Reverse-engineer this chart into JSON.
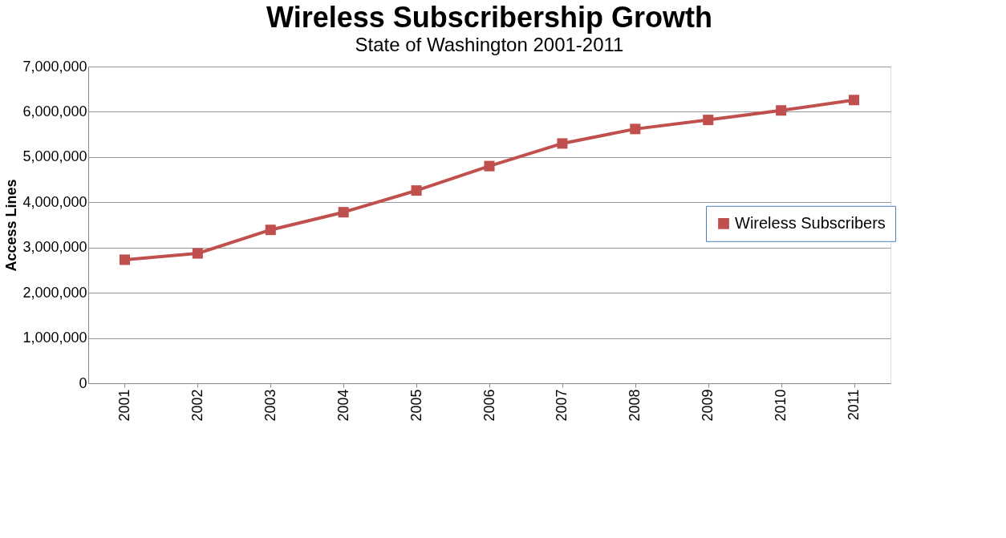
{
  "chart_data": {
    "type": "line",
    "title": "Wireless Subscribership Growth",
    "subtitle": "State of Washington 2001-2011",
    "ylabel": "Access Lines",
    "categories": [
      "2001",
      "2002",
      "2003",
      "2004",
      "2005",
      "2006",
      "2007",
      "2008",
      "2009",
      "2010",
      "2011"
    ],
    "series": [
      {
        "name": "Wireless Subscribers",
        "color": "#c0504d",
        "values": [
          2730000,
          2870000,
          3390000,
          3780000,
          4260000,
          4800000,
          5300000,
          5620000,
          5820000,
          6030000,
          6260000
        ]
      }
    ],
    "ylim": [
      0,
      7000000
    ],
    "yticks": [
      0,
      {
        "value": 1000000,
        "label": "1,000,000"
      },
      {
        "value": 2000000,
        "label": "2,000,000"
      },
      {
        "value": 3000000,
        "label": "3,000,000"
      },
      {
        "value": 4000000,
        "label": "4,000,000"
      },
      {
        "value": 5000000,
        "label": "5,000,000"
      },
      {
        "value": 6000000,
        "label": "6,000,000"
      },
      {
        "value": 7000000,
        "label": "7,000,000"
      }
    ],
    "grid": "y",
    "legend": "right",
    "marker": "square",
    "line_style": "solid"
  }
}
